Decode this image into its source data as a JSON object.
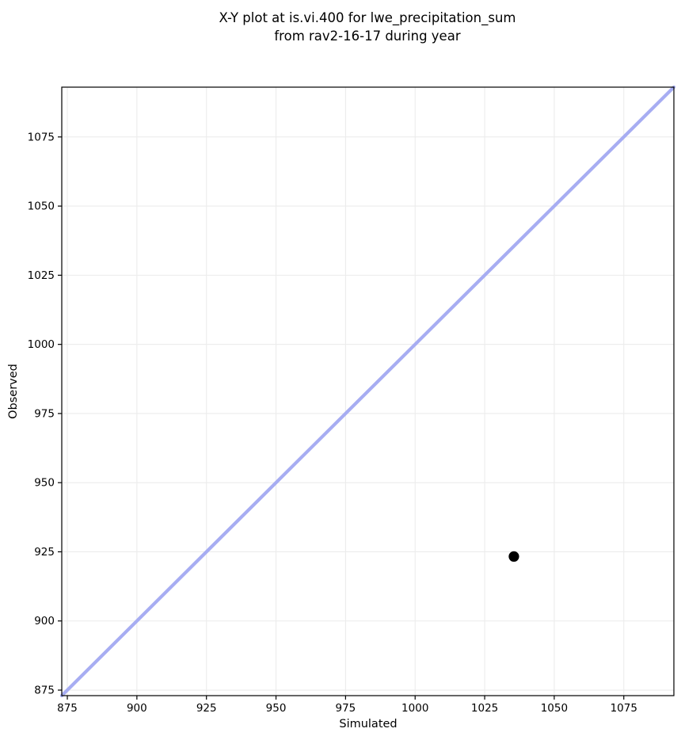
{
  "title": {
    "line1": "X-Y plot at is.vi.400 for lwe_precipitation_sum",
    "line2": "from rav2-16-17 during year"
  },
  "chart_data": {
    "type": "scatter",
    "title": "X-Y plot at is.vi.400 for lwe_precipitation_sum\nfrom rav2-16-17 during year",
    "xlabel": "Simulated",
    "ylabel": "Observed",
    "xlim": [
      873,
      1093
    ],
    "ylim": [
      873,
      1093
    ],
    "x_ticks": [
      875,
      900,
      925,
      950,
      975,
      1000,
      1025,
      1050,
      1075
    ],
    "y_ticks": [
      875,
      900,
      925,
      950,
      975,
      1000,
      1025,
      1050,
      1075
    ],
    "grid": true,
    "legend": false,
    "series": [
      {
        "name": "identity-line",
        "kind": "line",
        "x": [
          873,
          1093
        ],
        "y": [
          873,
          1093
        ],
        "color": "#a7adf2",
        "line_width": 4.2
      },
      {
        "name": "observations",
        "kind": "scatter",
        "points": [
          {
            "x": 1035.5,
            "y": 923.3
          }
        ],
        "color": "#000000",
        "marker_radius": 6.6
      }
    ],
    "colors": {
      "background": "#ffffff",
      "grid": "#ececec",
      "spine": "#000000",
      "tick": "#000000",
      "text": "#000000"
    }
  }
}
